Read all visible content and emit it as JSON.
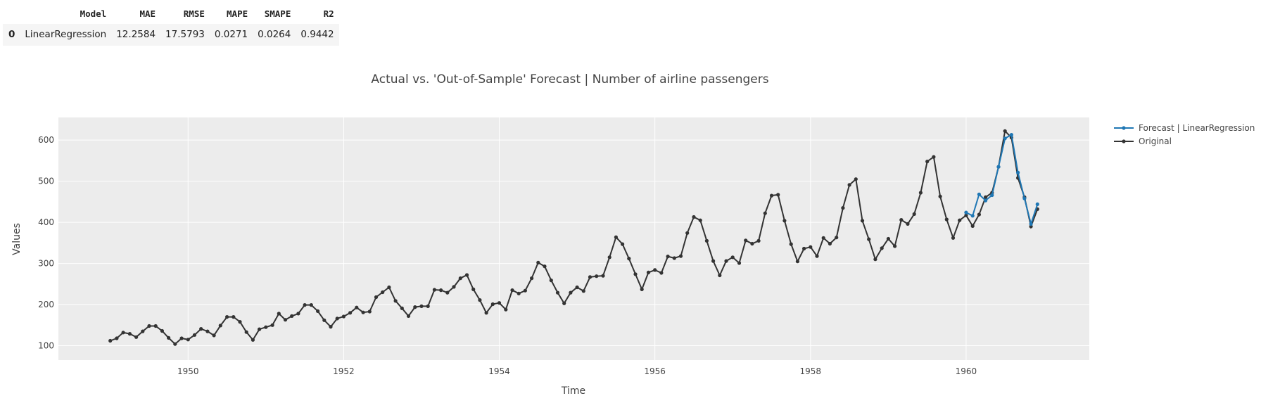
{
  "metrics_table": {
    "columns": [
      "",
      "Model",
      "MAE",
      "RMSE",
      "MAPE",
      "SMAPE",
      "R2"
    ],
    "rows": [
      [
        "0",
        "LinearRegression",
        "12.2584",
        "17.5793",
        "0.0271",
        "0.0264",
        "0.9442"
      ]
    ]
  },
  "chart_data": {
    "type": "line",
    "title": "Actual vs. 'Out-of-Sample' Forecast | Number of airline passengers",
    "xlabel": "Time",
    "ylabel": "Values",
    "xlim": [
      "1948-05",
      "1961-08"
    ],
    "ylim": [
      65,
      655
    ],
    "x_ticks": [
      "1950",
      "1952",
      "1954",
      "1956",
      "1958",
      "1960"
    ],
    "y_ticks": [
      100,
      200,
      300,
      400,
      500,
      600
    ],
    "grid": true,
    "legend_position": "top-right",
    "series": [
      {
        "name": "Forecast | LinearRegression",
        "color": "#1f77b4",
        "x": [
          "1960-01",
          "1960-02",
          "1960-03",
          "1960-04",
          "1960-05",
          "1960-06",
          "1960-07",
          "1960-08",
          "1960-09",
          "1960-10",
          "1960-11",
          "1960-12"
        ],
        "values": [
          424,
          416,
          468,
          453,
          466,
          535,
          604,
          613,
          521,
          458,
          396,
          444
        ]
      },
      {
        "name": "Original",
        "color": "#333333",
        "x": [
          "1949-01",
          "1949-02",
          "1949-03",
          "1949-04",
          "1949-05",
          "1949-06",
          "1949-07",
          "1949-08",
          "1949-09",
          "1949-10",
          "1949-11",
          "1949-12",
          "1950-01",
          "1950-02",
          "1950-03",
          "1950-04",
          "1950-05",
          "1950-06",
          "1950-07",
          "1950-08",
          "1950-09",
          "1950-10",
          "1950-11",
          "1950-12",
          "1951-01",
          "1951-02",
          "1951-03",
          "1951-04",
          "1951-05",
          "1951-06",
          "1951-07",
          "1951-08",
          "1951-09",
          "1951-10",
          "1951-11",
          "1951-12",
          "1952-01",
          "1952-02",
          "1952-03",
          "1952-04",
          "1952-05",
          "1952-06",
          "1952-07",
          "1952-08",
          "1952-09",
          "1952-10",
          "1952-11",
          "1952-12",
          "1953-01",
          "1953-02",
          "1953-03",
          "1953-04",
          "1953-05",
          "1953-06",
          "1953-07",
          "1953-08",
          "1953-09",
          "1953-10",
          "1953-11",
          "1953-12",
          "1954-01",
          "1954-02",
          "1954-03",
          "1954-04",
          "1954-05",
          "1954-06",
          "1954-07",
          "1954-08",
          "1954-09",
          "1954-10",
          "1954-11",
          "1954-12",
          "1955-01",
          "1955-02",
          "1955-03",
          "1955-04",
          "1955-05",
          "1955-06",
          "1955-07",
          "1955-08",
          "1955-09",
          "1955-10",
          "1955-11",
          "1955-12",
          "1956-01",
          "1956-02",
          "1956-03",
          "1956-04",
          "1956-05",
          "1956-06",
          "1956-07",
          "1956-08",
          "1956-09",
          "1956-10",
          "1956-11",
          "1956-12",
          "1957-01",
          "1957-02",
          "1957-03",
          "1957-04",
          "1957-05",
          "1957-06",
          "1957-07",
          "1957-08",
          "1957-09",
          "1957-10",
          "1957-11",
          "1957-12",
          "1958-01",
          "1958-02",
          "1958-03",
          "1958-04",
          "1958-05",
          "1958-06",
          "1958-07",
          "1958-08",
          "1958-09",
          "1958-10",
          "1958-11",
          "1958-12",
          "1959-01",
          "1959-02",
          "1959-03",
          "1959-04",
          "1959-05",
          "1959-06",
          "1959-07",
          "1959-08",
          "1959-09",
          "1959-10",
          "1959-11",
          "1959-12",
          "1960-01",
          "1960-02",
          "1960-03",
          "1960-04",
          "1960-05",
          "1960-06",
          "1960-07",
          "1960-08",
          "1960-09",
          "1960-10",
          "1960-11",
          "1960-12"
        ],
        "values": [
          112,
          118,
          132,
          129,
          121,
          135,
          148,
          148,
          136,
          119,
          104,
          118,
          115,
          126,
          141,
          135,
          125,
          149,
          170,
          170,
          158,
          133,
          114,
          140,
          145,
          150,
          178,
          163,
          172,
          178,
          199,
          199,
          184,
          162,
          146,
          166,
          171,
          180,
          193,
          181,
          183,
          218,
          230,
          242,
          209,
          191,
          172,
          194,
          196,
          196,
          236,
          235,
          229,
          243,
          264,
          272,
          237,
          211,
          180,
          201,
          204,
          188,
          235,
          227,
          234,
          264,
          302,
          293,
          259,
          229,
          203,
          229,
          242,
          233,
          267,
          269,
          270,
          315,
          364,
          347,
          312,
          274,
          237,
          278,
          284,
          277,
          317,
          313,
          318,
          374,
          413,
          405,
          355,
          306,
          271,
          306,
          315,
          301,
          356,
          348,
          355,
          422,
          465,
          467,
          404,
          347,
          305,
          336,
          340,
          318,
          362,
          348,
          363,
          435,
          491,
          505,
          404,
          359,
          310,
          337,
          360,
          342,
          406,
          396,
          420,
          472,
          548,
          559,
          463,
          407,
          362,
          405,
          417,
          391,
          419,
          461,
          472,
          535,
          622,
          606,
          508,
          461,
          390,
          432
        ]
      }
    ]
  }
}
